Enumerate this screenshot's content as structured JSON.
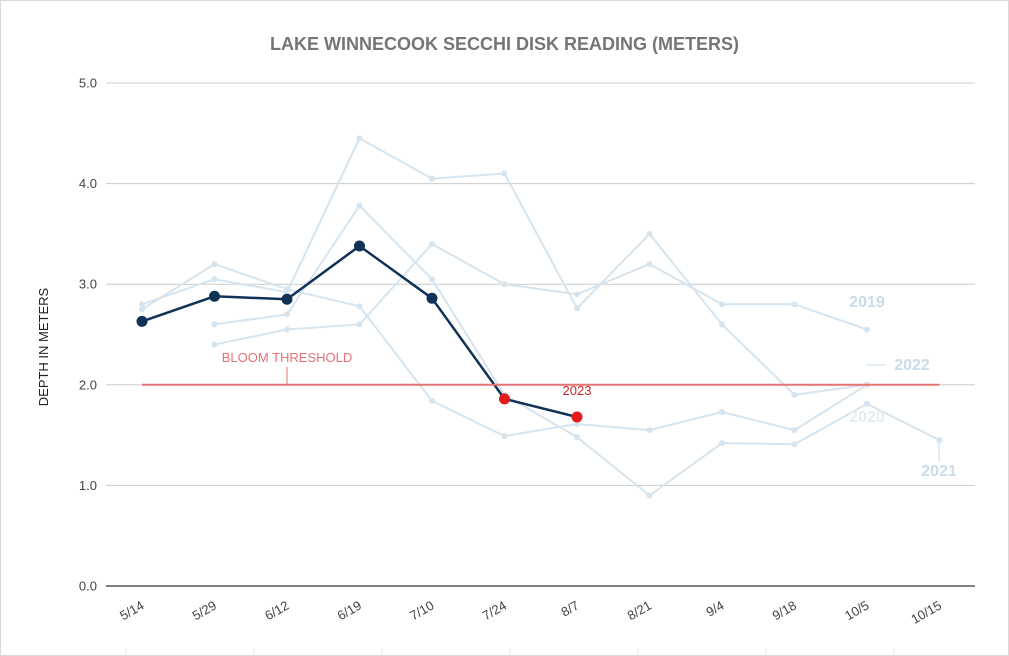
{
  "chart_data": {
    "type": "line",
    "title": "LAKE WINNECOOK SECCHI DISK READING (METERS)",
    "xlabel": "",
    "ylabel": "DEPTH IN METERS",
    "ylim": [
      0,
      5
    ],
    "yticks": [
      "0.0",
      "1.0",
      "2.0",
      "3.0",
      "4.0",
      "5.0"
    ],
    "categories": [
      "5/14",
      "5/29",
      "6/12",
      "6/19",
      "7/10",
      "7/24",
      "8/7",
      "8/21",
      "9/4",
      "9/18",
      "10/5",
      "10/15"
    ],
    "grid": true,
    "series": [
      {
        "name": "2019",
        "color": "#d6e4ef",
        "label_color": "#c9dcea",
        "values": [
          2.75,
          3.2,
          2.95,
          2.78,
          1.84,
          1.49,
          1.61,
          1.55,
          1.73,
          1.55,
          2.0,
          null
        ]
      },
      {
        "name": "2020",
        "color": "#d6e4ef",
        "label_color": "#e4edf4",
        "values": [
          2.8,
          3.05,
          2.92,
          4.45,
          4.05,
          4.1,
          2.76,
          3.5,
          2.6,
          1.9,
          2.0,
          null
        ]
      },
      {
        "name": "2021",
        "color": "#d6e4ef",
        "label_color": "#c9dcea",
        "values": [
          null,
          2.6,
          2.7,
          3.78,
          3.05,
          1.9,
          1.48,
          0.9,
          1.42,
          1.41,
          1.81,
          1.45
        ]
      },
      {
        "name": "2022",
        "color": "#d6e4ef",
        "label_color": "#c9dcea",
        "values": [
          null,
          2.4,
          2.55,
          2.6,
          3.4,
          3.0,
          2.9,
          3.2,
          2.8,
          2.8,
          2.55,
          null
        ]
      },
      {
        "name": "2023",
        "color": "#0f3257",
        "alert_color": "#e31b1b",
        "label_color": "#c62828",
        "values": [
          2.63,
          2.88,
          2.85,
          3.38,
          2.86,
          1.86,
          1.68,
          null,
          null,
          null,
          null,
          null
        ]
      },
      {
        "name": "BLOOM THRESHOLD",
        "color": "#e57373",
        "label_color": "#e57373",
        "values": [
          2.0,
          2.0,
          2.0,
          2.0,
          2.0,
          2.0,
          2.0,
          2.0,
          2.0,
          2.0,
          2.0,
          2.0
        ]
      }
    ]
  }
}
